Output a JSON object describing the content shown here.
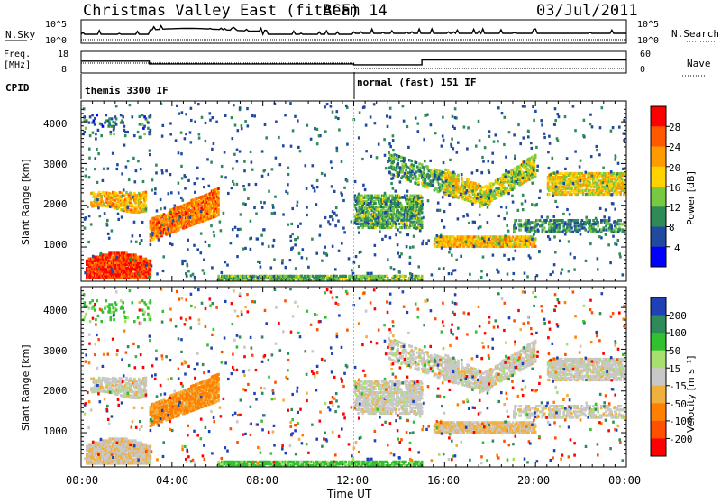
{
  "header": {
    "station": "Christmas Valley East (fitACF)",
    "beam": "Beam 14",
    "date": "03/Jul/2011"
  },
  "status_panels": {
    "nsky_label": "N.Sky",
    "noise_ticks_left": [
      "10^5",
      "10^0"
    ],
    "noise_ticks_right": [
      "10^5",
      "10^0"
    ],
    "nsearch_label": "N.Search",
    "freq_label_1": "Freq.",
    "freq_label_2": "[MHz]",
    "freq_ticks": [
      "18",
      "8"
    ],
    "nave_ticks": [
      "60",
      "0"
    ],
    "nave_label": "Nave",
    "cpid_label": "CPID",
    "cpid_1": "themis 3300 IF",
    "cpid_2": "normal (fast) 151 IF"
  },
  "x_axis": {
    "title": "Time UT",
    "ticks": [
      "00:00",
      "04:00",
      "08:00",
      "12:00",
      "16:00",
      "20:00",
      "00:00"
    ]
  },
  "power_panel": {
    "ylabel": "Slant Range [km]",
    "yticks": [
      "1000",
      "2000",
      "3000",
      "4000"
    ],
    "colorbar_title": "Power [dB]",
    "colorbar_ticks": [
      "28",
      "24",
      "20",
      "16",
      "12",
      "8",
      "4"
    ],
    "colors": [
      "#ff0000",
      "#ff5a00",
      "#ff9b00",
      "#ffd200",
      "#78c840",
      "#2e8b57",
      "#204aa0",
      "#0000ff"
    ]
  },
  "velocity_panel": {
    "ylabel": "Slant Range [km]",
    "yticks": [
      "1000",
      "2000",
      "3000",
      "4000"
    ],
    "colorbar_title": "Velocity [m s⁻¹]",
    "colorbar_ticks": [
      "200",
      "100",
      "50",
      "15",
      "-15",
      "-50",
      "-100",
      "-200"
    ],
    "colors": [
      "#2040b8",
      "#2e8b57",
      "#30c030",
      "#a8e070",
      "#c8c8c8",
      "#f0b040",
      "#ff8000",
      "#ff5000",
      "#ff0000"
    ]
  },
  "chart_data": {
    "type": "heatmap",
    "title": "Christmas Valley East (fitACF) Beam 14 03/Jul/2011",
    "xlabel": "Time UT",
    "ylabel": "Slant Range [km]",
    "xlim": [
      0,
      24
    ],
    "ylim": [
      180,
      4500
    ],
    "frequency_mhz": [
      {
        "from_ut": 0,
        "to_ut": 3,
        "value": 13.5
      },
      {
        "from_ut": 3,
        "to_ut": 12,
        "value": 12.2
      },
      {
        "from_ut": 12,
        "to_ut": 15,
        "value": 11.8
      },
      {
        "from_ut": 15,
        "to_ut": 24,
        "value": 14.0
      }
    ],
    "cpid_periods": [
      {
        "from_ut": 0,
        "to_ut": 12,
        "name": "themis 3300 IF"
      },
      {
        "from_ut": 12,
        "to_ut": 24,
        "name": "normal (fast) 151 IF"
      }
    ],
    "power_db_scale": [
      0,
      32
    ],
    "velocity_scale_m_s": [
      -250,
      250
    ],
    "echo_regions": [
      {
        "t": [
          0.5,
          2.5
        ],
        "range_km": [
          2000,
          2300
        ],
        "power_db": 20,
        "velocity": 0
      },
      {
        "t": [
          0.0,
          3.0
        ],
        "range_km": [
          300,
          900
        ],
        "power_db": 26,
        "velocity": -10
      },
      {
        "t": [
          3.0,
          5.5
        ],
        "range_km": [
          1300,
          2000
        ],
        "power_db": 22,
        "velocity": -40
      },
      {
        "t": [
          16.0,
          19.5
        ],
        "range_km": [
          1050,
          1300
        ],
        "power_db": 18,
        "velocity": -20
      },
      {
        "t": [
          17.0,
          18.5
        ],
        "range_km": [
          2100,
          2500
        ],
        "power_db": 20,
        "velocity": 0
      },
      {
        "t": [
          22.0,
          24.0
        ],
        "range_km": [
          2300,
          2800
        ],
        "power_db": 18,
        "velocity": 0
      },
      {
        "t": [
          6.0,
          14.5
        ],
        "range_km": [
          200,
          400
        ],
        "power_db": 12,
        "velocity": 40
      }
    ]
  }
}
